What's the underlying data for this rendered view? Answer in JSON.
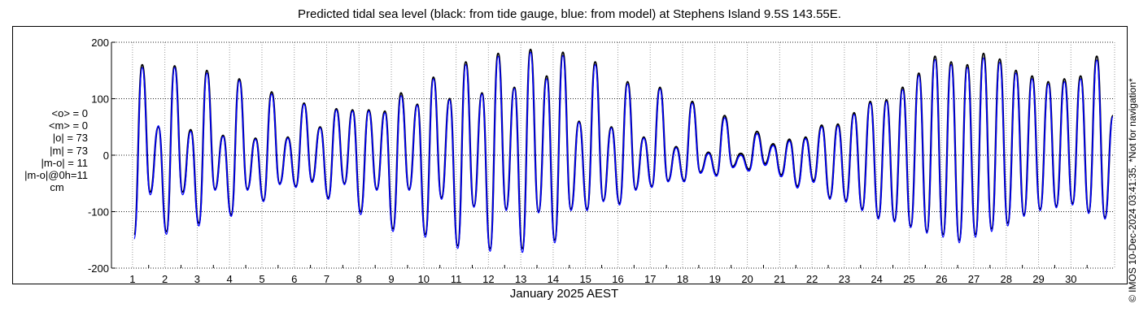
{
  "title": "Predicted tidal sea level (black: from tide gauge, blue: from model) at Stephens Island 9.5S 143.55E.",
  "stats": [
    "<o> = 0",
    "<m> = 0",
    "|o| = 73",
    "|m| = 73",
    "|m-o| = 11",
    "|m-o|@0h=11",
    "cm"
  ],
  "copyright": "© IMOS 10-Dec-2024 03:41:35. *Not for navigation*",
  "colors": {
    "observed": "#000000",
    "model": "#0000ff",
    "grid": "#9a9a9a"
  },
  "chart_data": {
    "type": "line",
    "title": "Predicted tidal sea level (black: from tide gauge, blue: from model) at Stephens Island 9.5S 143.55E.",
    "xlabel": "January 2025 AEST",
    "ylabel": "",
    "xlim": [
      0.35,
      31.35
    ],
    "ylim": [
      -200,
      200
    ],
    "x_ticks": [
      1,
      2,
      3,
      4,
      5,
      6,
      7,
      8,
      9,
      10,
      11,
      12,
      13,
      14,
      15,
      16,
      17,
      18,
      19,
      20,
      21,
      22,
      23,
      24,
      25,
      26,
      27,
      28,
      29,
      30
    ],
    "y_ticks": [
      -200,
      -100,
      0,
      100,
      200
    ],
    "grid": "dotted",
    "series": [
      {
        "color": "#000000",
        "x": [
          1.05,
          1.3,
          1.55,
          1.8,
          2.05,
          2.3,
          2.55,
          2.8,
          3.05,
          3.3,
          3.55,
          3.8,
          4.05,
          4.3,
          4.55,
          4.8,
          5.05,
          5.3,
          5.55,
          5.8,
          6.05,
          6.3,
          6.55,
          6.8,
          7.05,
          7.3,
          7.55,
          7.8,
          8.05,
          8.3,
          8.55,
          8.8,
          9.05,
          9.3,
          9.55,
          9.8,
          10.05,
          10.3,
          10.55,
          10.8,
          11.05,
          11.3,
          11.55,
          11.8,
          12.05,
          12.3,
          12.55,
          12.8,
          13.05,
          13.3,
          13.55,
          13.8,
          14.05,
          14.3,
          14.55,
          14.8,
          15.05,
          15.3,
          15.55,
          15.8,
          16.05,
          16.3,
          16.55,
          16.8,
          17.05,
          17.3,
          17.55,
          17.8,
          18.05,
          18.3,
          18.55,
          18.8,
          19.05,
          19.3,
          19.55,
          19.8,
          20.05,
          20.3,
          20.55,
          20.8,
          21.05,
          21.3,
          21.55,
          21.8,
          22.05,
          22.3,
          22.55,
          22.8,
          23.05,
          23.3,
          23.55,
          23.8,
          24.05,
          24.3,
          24.55,
          24.8,
          25.05,
          25.3,
          25.55,
          25.8,
          26.05,
          26.3,
          26.55,
          26.8,
          27.05,
          27.3,
          27.55,
          27.8,
          28.05,
          28.3,
          28.55,
          28.8,
          29.05,
          29.3,
          29.55,
          29.8,
          30.05,
          30.3,
          30.55,
          30.8,
          31.05,
          31.3
        ],
        "y": [
          -140,
          160,
          -65,
          50,
          -135,
          158,
          -65,
          45,
          -120,
          150,
          -60,
          35,
          -105,
          135,
          -60,
          30,
          -80,
          112,
          -50,
          32,
          -55,
          92,
          -45,
          50,
          -75,
          82,
          -50,
          80,
          -100,
          80,
          -60,
          78,
          -130,
          110,
          -60,
          90,
          -140,
          138,
          -75,
          100,
          -160,
          165,
          -90,
          110,
          -165,
          180,
          -95,
          120,
          -165,
          187,
          -100,
          140,
          -150,
          182,
          -95,
          60,
          -95,
          165,
          -80,
          50,
          -85,
          130,
          -60,
          32,
          -55,
          120,
          -45,
          15,
          -45,
          95,
          -30,
          5,
          -35,
          70,
          -20,
          3,
          -25,
          42,
          -15,
          20,
          -35,
          28,
          -55,
          32,
          -45,
          53,
          -75,
          55,
          -80,
          75,
          -95,
          95,
          -110,
          98,
          -115,
          120,
          -125,
          145,
          -135,
          175,
          -140,
          165,
          -150,
          160,
          -140,
          180,
          -130,
          170,
          -120,
          150,
          -105,
          140,
          -95,
          130,
          -90,
          135,
          -85,
          140,
          -100,
          175,
          -110,
          70
        ]
      },
      {
        "color": "#0000ff",
        "x": [
          1.05,
          1.3,
          1.55,
          1.8,
          2.05,
          2.3,
          2.55,
          2.8,
          3.05,
          3.3,
          3.55,
          3.8,
          4.05,
          4.3,
          4.55,
          4.8,
          5.05,
          5.3,
          5.55,
          5.8,
          6.05,
          6.3,
          6.55,
          6.8,
          7.05,
          7.3,
          7.55,
          7.8,
          8.05,
          8.3,
          8.55,
          8.8,
          9.05,
          9.3,
          9.55,
          9.8,
          10.05,
          10.3,
          10.55,
          10.8,
          11.05,
          11.3,
          11.55,
          11.8,
          12.05,
          12.3,
          12.55,
          12.8,
          13.05,
          13.3,
          13.55,
          13.8,
          14.05,
          14.3,
          14.55,
          14.8,
          15.05,
          15.3,
          15.55,
          15.8,
          16.05,
          16.3,
          16.55,
          16.8,
          17.05,
          17.3,
          17.55,
          17.8,
          18.05,
          18.3,
          18.55,
          18.8,
          19.05,
          19.3,
          19.55,
          19.8,
          20.05,
          20.3,
          20.55,
          20.8,
          21.05,
          21.3,
          21.55,
          21.8,
          22.05,
          22.3,
          22.55,
          22.8,
          23.05,
          23.3,
          23.55,
          23.8,
          24.05,
          24.3,
          24.55,
          24.8,
          25.05,
          25.3,
          25.55,
          25.8,
          26.05,
          26.3,
          26.55,
          26.8,
          27.05,
          27.3,
          27.55,
          27.8,
          28.05,
          28.3,
          28.55,
          28.8,
          29.05,
          29.3,
          29.55,
          29.8,
          30.05,
          30.3,
          30.55,
          30.8,
          31.05,
          31.3
        ],
        "y": [
          -148,
          155,
          -70,
          52,
          -140,
          155,
          -70,
          42,
          -125,
          145,
          -62,
          33,
          -108,
          132,
          -62,
          28,
          -82,
          108,
          -52,
          30,
          -57,
          90,
          -48,
          48,
          -78,
          80,
          -52,
          78,
          -105,
          78,
          -62,
          75,
          -135,
          105,
          -62,
          88,
          -145,
          135,
          -78,
          98,
          -165,
          160,
          -92,
          108,
          -170,
          175,
          -98,
          118,
          -172,
          182,
          -102,
          135,
          -155,
          176,
          -98,
          58,
          -98,
          160,
          -82,
          48,
          -88,
          126,
          -62,
          30,
          -57,
          117,
          -47,
          13,
          -47,
          92,
          -32,
          3,
          -37,
          66,
          -22,
          0,
          -28,
          38,
          -18,
          17,
          -38,
          25,
          -58,
          29,
          -48,
          50,
          -78,
          52,
          -83,
          72,
          -98,
          92,
          -113,
          95,
          -118,
          116,
          -128,
          141,
          -138,
          169,
          -145,
          160,
          -155,
          155,
          -145,
          172,
          -135,
          164,
          -125,
          145,
          -108,
          135,
          -98,
          126,
          -93,
          130,
          -88,
          135,
          -103,
          168,
          -113,
          68
        ]
      }
    ]
  }
}
